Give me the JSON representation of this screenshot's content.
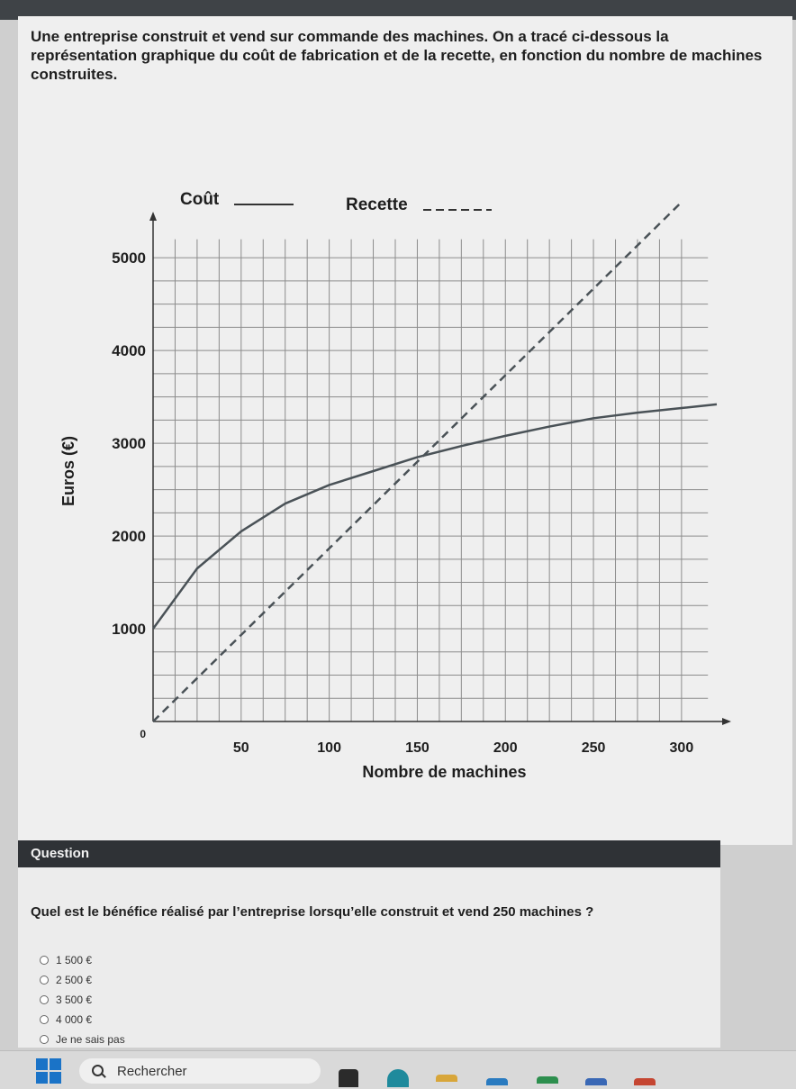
{
  "intro_text": "Une entreprise construit et vend sur commande des machines. On a tracé ci-dessous la représentation graphique du coût de fabrication et de la recette, en fonction du nombre de machines construites.",
  "chart_data": {
    "type": "line",
    "xlabel": "Nombre de machines",
    "ylabel": "Euros (€)",
    "xlim": [
      0,
      320
    ],
    "ylim": [
      0,
      5400
    ],
    "x_ticks": [
      "50",
      "100",
      "150",
      "200",
      "250",
      "300"
    ],
    "x_tick_values": [
      50,
      100,
      150,
      200,
      250,
      300
    ],
    "y_ticks": [
      "0",
      "1000",
      "2000",
      "3000",
      "4000",
      "5000"
    ],
    "y_tick_values": [
      0,
      1000,
      2000,
      3000,
      4000,
      5000
    ],
    "grid": true,
    "legend": {
      "placement": "top",
      "entries": [
        "Coût",
        "Recette"
      ]
    },
    "series": [
      {
        "name": "Coût",
        "style": "solid",
        "x": [
          0,
          25,
          50,
          75,
          100,
          125,
          150,
          175,
          200,
          225,
          250,
          275,
          300,
          320
        ],
        "y": [
          1000,
          1650,
          2050,
          2350,
          2550,
          2700,
          2850,
          2970,
          3080,
          3180,
          3270,
          3330,
          3380,
          3420
        ]
      },
      {
        "name": "Recette",
        "style": "dashed",
        "x": [
          0,
          300
        ],
        "y": [
          0,
          5600
        ]
      }
    ]
  },
  "question": {
    "header": "Question",
    "text": "Quel est le bénéfice réalisé par l’entreprise lorsqu’elle construit et vend 250 machines ?",
    "options": [
      "1 500 €",
      "2 500 €",
      "3 500 €",
      "4 000 €",
      "Je ne sais pas"
    ]
  },
  "taskbar": {
    "search_label": "Rechercher"
  },
  "colors": {
    "cost_line": "#4a5257",
    "revenue_line": "#4a5257",
    "grid": "#8c8c8c",
    "accent": "#1a73c7"
  }
}
